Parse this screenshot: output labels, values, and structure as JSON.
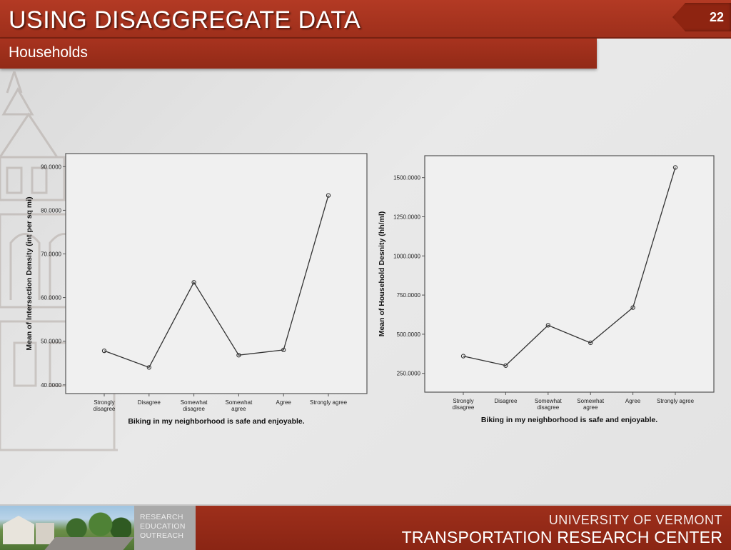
{
  "slide": {
    "title": "USING DISAGGREGATE DATA",
    "subtitle": "Households",
    "page_number": "22"
  },
  "footer": {
    "tagline": [
      "RESEARCH",
      "EDUCATION",
      "OUTREACH"
    ],
    "university": "UNIVERSITY OF VERMONT",
    "center": "TRANSPORTATION RESEARCH CENTER"
  },
  "colors": {
    "accent": "#9e2f1b",
    "plot_background": "#f0f0f0",
    "line": "#333333"
  },
  "chart_data": [
    {
      "type": "line",
      "categories": [
        [
          "Strongly",
          "disagree"
        ],
        [
          "Disagree"
        ],
        [
          "Somewhat",
          "disagree"
        ],
        [
          "Somewhat",
          "agree"
        ],
        [
          "Agree"
        ],
        [
          "Strongly agree"
        ]
      ],
      "values": [
        47.8,
        44.0,
        63.5,
        46.8,
        48.0,
        83.4
      ],
      "xlabel": "Biking in my neighborhood is safe and enjoyable.",
      "ylabel": "Mean of Intersection Density (int per sq mi)",
      "ylim": [
        38,
        93
      ],
      "yticks": [
        40,
        50,
        60,
        70,
        80,
        90
      ],
      "ytick_labels": [
        "40.0000",
        "50.0000",
        "60.0000",
        "70.0000",
        "80.0000",
        "90.0000"
      ],
      "markers": "circle",
      "grid": false,
      "legend": "none"
    },
    {
      "type": "line",
      "categories": [
        [
          "Strongly",
          "disagree"
        ],
        [
          "Disagree"
        ],
        [
          "Somewhat",
          "disagree"
        ],
        [
          "Somewhat",
          "agree"
        ],
        [
          "Agree"
        ],
        [
          "Strongly agree"
        ]
      ],
      "values": [
        360,
        300,
        557,
        445,
        670,
        1565
      ],
      "xlabel": "Biking in my neighborhood is safe and enjoyable.",
      "ylabel": "Mean of Household Desnity (hh/ml)",
      "ylim": [
        130,
        1640
      ],
      "yticks": [
        250,
        500,
        750,
        1000,
        1250,
        1500
      ],
      "ytick_labels": [
        "250.0000",
        "500.0000",
        "750.0000",
        "1000.0000",
        "1250.0000",
        "1500.0000"
      ],
      "markers": "circle",
      "grid": false,
      "legend": "none"
    }
  ]
}
